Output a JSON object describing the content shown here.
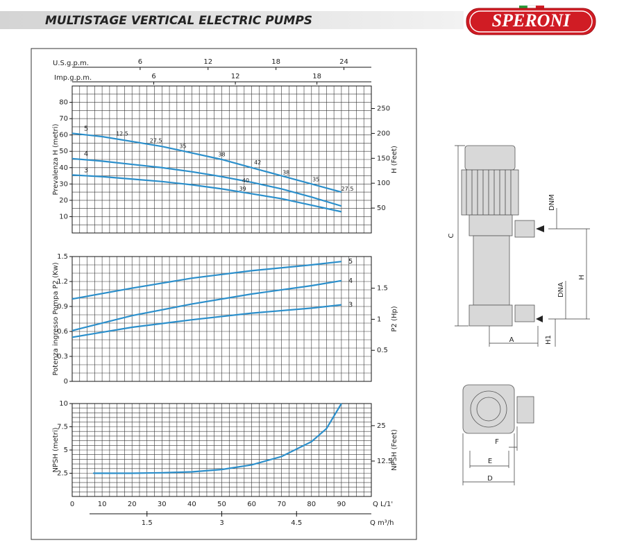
{
  "header": {
    "title": "MULTISTAGE VERTICAL ELECTRIC PUMPS",
    "logo": "SPERONI"
  },
  "chart_data": [
    {
      "type": "line",
      "ylabel": "Prevalenza H (metri)",
      "y2label": "H (Feet)",
      "xlim": [
        0,
        100
      ],
      "ylim": [
        0,
        90
      ],
      "yticks": [
        10,
        20,
        30,
        40,
        50,
        60,
        70,
        80
      ],
      "y2lim": [
        0,
        295.3
      ],
      "y2ticks": [
        50,
        100,
        150,
        200,
        250
      ],
      "grid_step": [
        2.5,
        5
      ],
      "series_label_side": "left",
      "top_axes": [
        {
          "label": "U.S.g.p.m.",
          "xlim": [
            0,
            26.42
          ],
          "xticks": [
            6,
            12,
            18,
            24
          ]
        },
        {
          "label": "Imp.g.p.m.",
          "xlim": [
            0,
            22
          ],
          "xticks": [
            6,
            12,
            18
          ]
        }
      ],
      "series": [
        {
          "name": "5",
          "color": "#2b8fcb",
          "x": [
            0,
            10,
            20,
            30,
            40,
            50,
            60,
            70,
            80,
            90
          ],
          "values": [
            61,
            59,
            56,
            53,
            49,
            45,
            40,
            35,
            30,
            25
          ]
        },
        {
          "name": "4",
          "color": "#2b8fcb",
          "x": [
            0,
            10,
            20,
            30,
            40,
            50,
            60,
            70,
            80,
            90
          ],
          "values": [
            45.5,
            44,
            42,
            40,
            37.5,
            34.5,
            31,
            27,
            22,
            16.5
          ]
        },
        {
          "name": "3",
          "color": "#2b8fcb",
          "x": [
            0,
            10,
            20,
            30,
            40,
            50,
            60,
            70,
            80,
            90
          ],
          "values": [
            35.5,
            34.5,
            33,
            31.5,
            29.5,
            27,
            24,
            21,
            17,
            13
          ]
        }
      ],
      "annotations": [
        {
          "text": "12.5",
          "x": 16.7,
          "y": 60.7
        },
        {
          "text": "27.5",
          "x": 28,
          "y": 56.5
        },
        {
          "text": "35",
          "x": 37,
          "y": 53
        },
        {
          "text": "38",
          "x": 50,
          "y": 48
        },
        {
          "text": "42",
          "x": 62,
          "y": 43
        },
        {
          "text": "38",
          "x": 71.5,
          "y": 37
        },
        {
          "text": "35",
          "x": 81.5,
          "y": 32.7
        },
        {
          "text": "27.5",
          "x": 92,
          "y": 27
        },
        {
          "text": "40",
          "x": 58,
          "y": 32
        },
        {
          "text": "39",
          "x": 57,
          "y": 27
        }
      ]
    },
    {
      "type": "line",
      "ylabel": "Potenza ingresso Pompa P2 (Kw)",
      "y2label": "P2 (Hp)",
      "xlim": [
        0,
        100
      ],
      "ylim": [
        0,
        1.5
      ],
      "yticks": [
        0,
        0.3,
        0.6,
        0.9,
        1.2,
        1.5
      ],
      "y2lim": [
        0,
        2.01
      ],
      "y2ticks": [
        0.5,
        1,
        1.5
      ],
      "grid_step": [
        2.5,
        0.1
      ],
      "series_label_side": "right",
      "series": [
        {
          "name": "5",
          "color": "#2b8fcb",
          "x": [
            0,
            20,
            40,
            60,
            80,
            90
          ],
          "values": [
            0.99,
            1.12,
            1.24,
            1.33,
            1.4,
            1.44
          ]
        },
        {
          "name": "4",
          "color": "#2b8fcb",
          "x": [
            0,
            20,
            40,
            60,
            80,
            90
          ],
          "values": [
            0.61,
            0.79,
            0.93,
            1.05,
            1.15,
            1.21
          ]
        },
        {
          "name": "3",
          "color": "#2b8fcb",
          "x": [
            0,
            20,
            40,
            60,
            80,
            90
          ],
          "values": [
            0.53,
            0.65,
            0.74,
            0.82,
            0.88,
            0.92
          ]
        }
      ]
    },
    {
      "type": "line",
      "ylabel": "NPSH (metri)",
      "y2label": "NPSH (Feet)",
      "xlim": [
        0,
        100
      ],
      "ylim": [
        0,
        10
      ],
      "yticks": [
        2.5,
        5,
        7.5,
        10
      ],
      "y2lim": [
        0,
        32.81
      ],
      "y2ticks": [
        12.5,
        25
      ],
      "grid_step": [
        2.5,
        0.5
      ],
      "xlabel": "Q L/1'",
      "xticks": [
        0,
        10,
        20,
        30,
        40,
        50,
        60,
        70,
        80,
        90
      ],
      "x2label": "Q m³/h",
      "x2lim": [
        0,
        6
      ],
      "x2ticks": [
        1.5,
        3,
        4.5
      ],
      "series": [
        {
          "name": null,
          "color": "#2b8fcb",
          "x": [
            7,
            20,
            30,
            40,
            50,
            60,
            70,
            80,
            85,
            90
          ],
          "values": [
            2.5,
            2.5,
            2.55,
            2.65,
            2.9,
            3.4,
            4.3,
            5.9,
            7.3,
            10
          ]
        }
      ]
    }
  ],
  "diagram": {
    "labels": [
      "C",
      "DNM",
      "H",
      "DNA",
      "A",
      "H1",
      "F",
      "E",
      "D"
    ]
  }
}
